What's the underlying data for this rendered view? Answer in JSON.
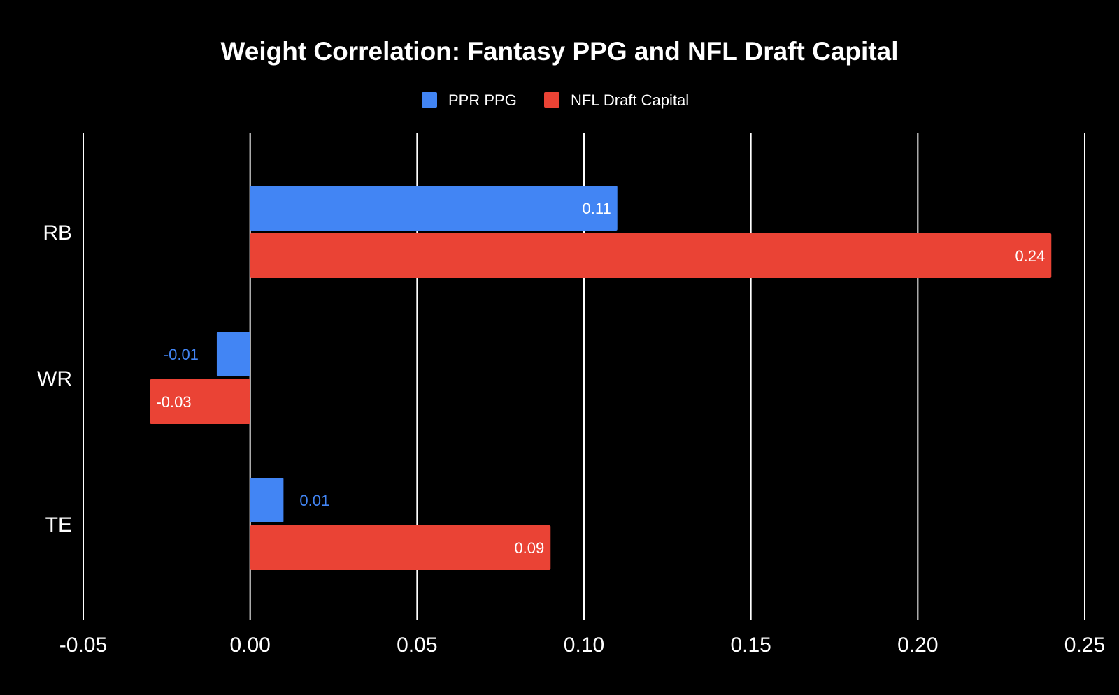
{
  "colors": {
    "background": "#000000",
    "grid": "#ffffff",
    "text": "#ffffff",
    "ppr": "#4285f4",
    "draft": "#ea4335"
  },
  "chart_data": {
    "type": "bar",
    "orientation": "horizontal",
    "title": "Weight Correlation: Fantasy PPG and NFL Draft Capital",
    "xlabel": "",
    "ylabel": "",
    "categories": [
      "RB",
      "WR",
      "TE"
    ],
    "series": [
      {
        "name": "PPR PPG",
        "color": "#4285f4",
        "values": [
          0.11,
          -0.01,
          0.01
        ],
        "labels": [
          "0.11",
          "-0.01",
          "0.01"
        ]
      },
      {
        "name": "NFL Draft Capital",
        "color": "#ea4335",
        "values": [
          0.24,
          -0.03,
          0.09
        ],
        "labels": [
          "0.24",
          "-0.03",
          "0.09"
        ]
      }
    ],
    "xlim": [
      -0.05,
      0.25
    ],
    "xticks": [
      -0.05,
      0,
      0.05,
      0.1,
      0.15,
      0.2,
      0.25
    ],
    "xtick_labels": [
      "-0.05",
      "0.00",
      "0.05",
      "0.10",
      "0.15",
      "0.20",
      "0.25"
    ],
    "grid": true,
    "legend": "top-center"
  }
}
